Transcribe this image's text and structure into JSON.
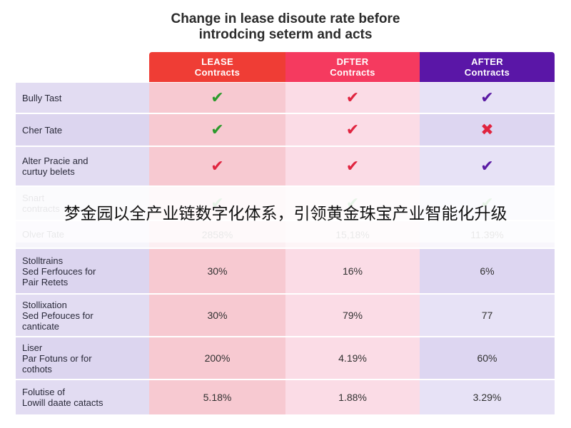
{
  "chart_data": {
    "type": "table",
    "title_line1": "Change in lease disoute rate before",
    "title_line2": "introdcing seterm and acts",
    "columns": [
      {
        "line1": "LEASE",
        "line2": "Contracts",
        "color": "#ef3d35"
      },
      {
        "line1": "DFTER",
        "line2": "Contracts",
        "color": "#f53a5f"
      },
      {
        "line1": "AFTER",
        "line2": "Contracts",
        "color": "#5a16a7"
      }
    ],
    "rows": [
      {
        "label": "Bully Tast",
        "cells": [
          "check-green",
          "check-red",
          "check-purple"
        ]
      },
      {
        "label": "Cher Tate",
        "cells": [
          "check-green",
          "check-red",
          "cross-red"
        ]
      },
      {
        "label": "Alter Pracie and\ncurtuy belets",
        "cells": [
          "check-red",
          "check-red",
          "check-purple"
        ]
      },
      {
        "label": "Snart\ncontracts",
        "cells": [
          "check-green",
          "check-green",
          "check-green"
        ],
        "faded": true
      },
      {
        "label": "Olver Tate",
        "cells": [
          "2858%",
          "15,18%",
          "11.39%"
        ],
        "faded": true
      },
      {
        "label": "Stolltrains\nSed Ferfouces for\nPair Retets",
        "cells": [
          "30%",
          "16%",
          "6%"
        ]
      },
      {
        "label": "Stollixation\nSed Pefouces for\ncanticate",
        "cells": [
          "30%",
          "79%",
          "77"
        ]
      },
      {
        "label": "Liser\nPar Fotuns or for\ncothots",
        "cells": [
          "200%",
          "4.19%",
          "60%"
        ]
      },
      {
        "label": "Folutise of\nLowill daate catacts",
        "cells": [
          "5.18%",
          "1.88%",
          "3.29%"
        ]
      }
    ]
  },
  "overlay": {
    "text": "梦金园以全产业链数字化体系，引领黄金珠宝产业智能化升级"
  },
  "icons": {
    "check-green": {
      "glyph": "✔",
      "color": "#2c9a2c",
      "name": "check-icon"
    },
    "check-red": {
      "glyph": "✔",
      "color": "#e0243f",
      "name": "check-icon"
    },
    "check-purple": {
      "glyph": "✔",
      "color": "#5a1aa3",
      "name": "check-icon"
    },
    "cross-red": {
      "glyph": "✖",
      "color": "#e0243f",
      "name": "cross-icon"
    }
  }
}
